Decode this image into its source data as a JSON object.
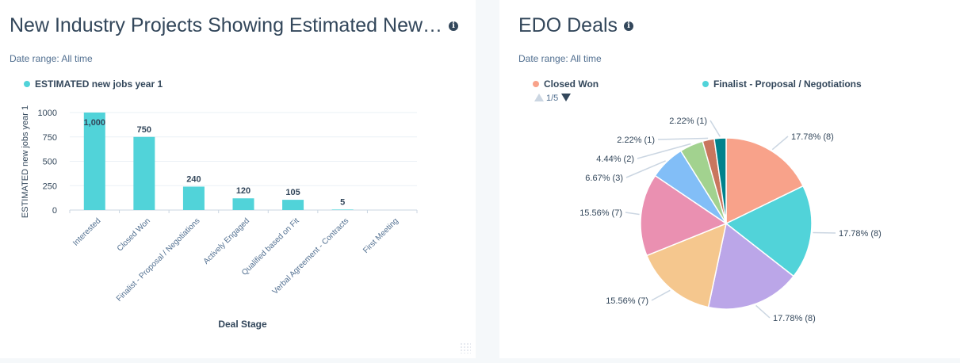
{
  "left_card": {
    "title": "New Industry Projects Showing Estimated New…",
    "date_range": "Date range:  All time"
  },
  "right_card": {
    "title": "EDO Deals",
    "date_range": "Date range:  All time",
    "pager": "1/5"
  },
  "chart_data": [
    {
      "type": "bar",
      "title": "New Industry Projects Showing Estimated New…",
      "xlabel": "Deal Stage",
      "ylabel": "ESTIMATED new jobs year 1",
      "ylim": [
        0,
        1000
      ],
      "yticks": [
        0,
        250,
        500,
        750,
        1000
      ],
      "categories": [
        "Interested",
        "Closed Won",
        "Finalist - Proposal / Negotiations",
        "Actively Engaged",
        "Qualified based on Fit",
        "Verbal Agreement - Contracts",
        "First Meeting"
      ],
      "series": [
        {
          "name": "ESTIMATED new jobs year 1",
          "color": "#51d3d9",
          "values": [
            1000,
            750,
            240,
            120,
            105,
            5,
            null
          ],
          "labels": [
            "1,000",
            "750",
            "240",
            "120",
            "105",
            "5",
            ""
          ]
        }
      ],
      "legend": "top-left",
      "grid": true
    },
    {
      "type": "pie",
      "title": "EDO Deals",
      "legend_visible": [
        {
          "name": "Closed Won",
          "color": "#f8a28a"
        },
        {
          "name": "Finalist - Proposal / Negotiations",
          "color": "#51d3d9"
        }
      ],
      "slices": [
        {
          "value": 8,
          "label": "17.78% (8)",
          "color": "#f8a28a"
        },
        {
          "value": 8,
          "label": "17.78% (8)",
          "color": "#51d3d9"
        },
        {
          "value": 8,
          "label": "17.78% (8)",
          "color": "#bba6e8"
        },
        {
          "value": 7,
          "label": "15.56% (7)",
          "color": "#f5c78e"
        },
        {
          "value": 7,
          "label": "15.56% (7)",
          "color": "#ea90b1"
        },
        {
          "value": 3,
          "label": "6.67% (3)",
          "color": "#82bef7"
        },
        {
          "value": 2,
          "label": "4.44% (2)",
          "color": "#a2d28f"
        },
        {
          "value": 1,
          "label": "2.22% (1)",
          "color": "#c9765e"
        },
        {
          "value": 1,
          "label": "2.22% (1)",
          "color": "#00828c"
        }
      ]
    }
  ]
}
